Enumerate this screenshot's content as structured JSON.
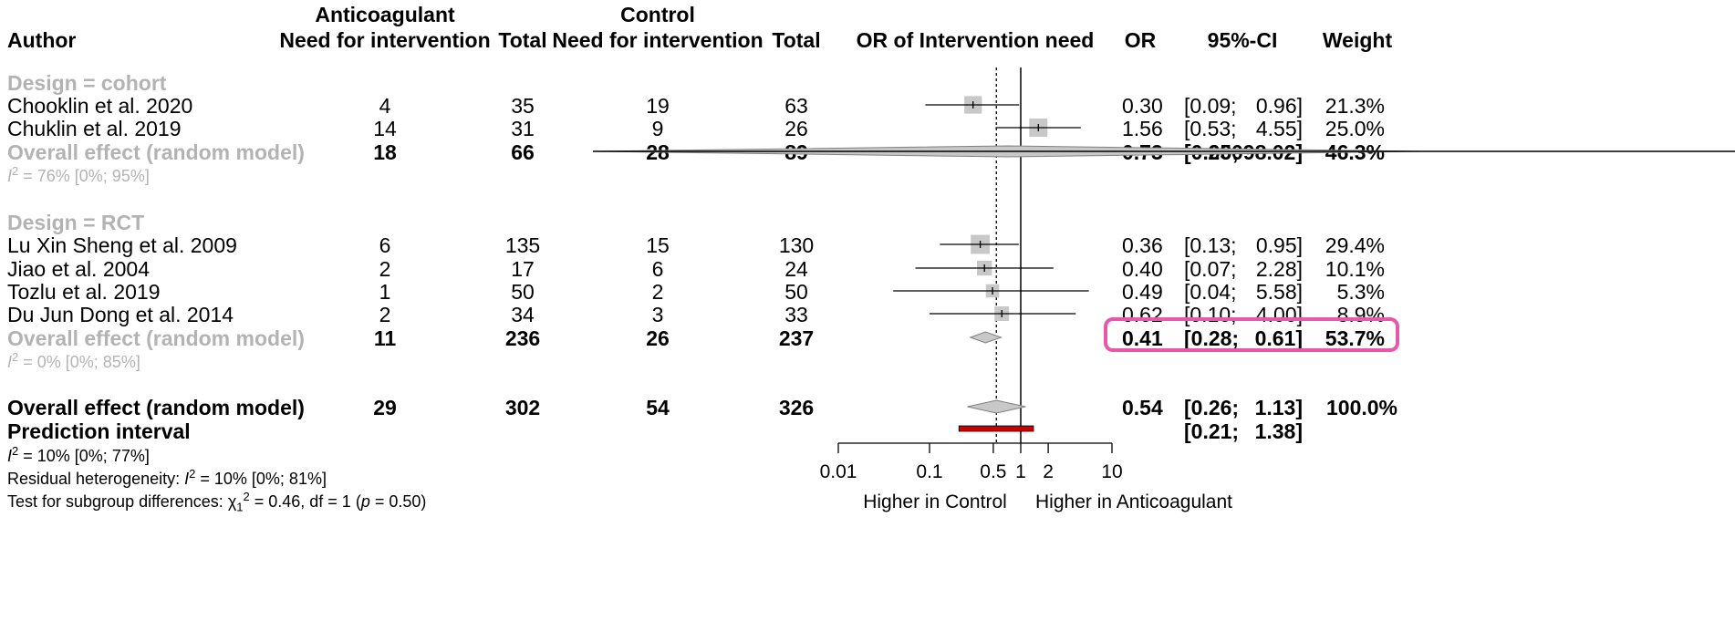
{
  "header": {
    "author": "Author",
    "anticoagulant": "Anticoagulant",
    "control": "Control",
    "need_anti": "Need for intervention",
    "need_ctrl": "Need for intervention",
    "total_anti": "Total",
    "total_ctrl": "Total",
    "plot_title": "OR of Intervention need",
    "or": "OR",
    "ci": "95%-CI",
    "weight": "Weight"
  },
  "colors": {
    "gray_text": "#b3b3b3",
    "box": "#c8c8c8",
    "prediction": "#cc0000",
    "highlight": "#e858a8"
  },
  "chart_data": {
    "type": "forest",
    "title": "OR of Intervention need",
    "xlabel_left": "Higher in Control",
    "xlabel_right": "Higher in Anticoagulant",
    "xscale": "log",
    "xlim": [
      0.01,
      10
    ],
    "ticks": [
      "0.01",
      "0.1",
      "0.5",
      "1",
      "2",
      "10"
    ],
    "tick_values": [
      0.01,
      0.1,
      0.5,
      1,
      2,
      10
    ],
    "null_line": 1,
    "pooled_line": 0.54,
    "subgroups": [
      {
        "label": "Design = cohort",
        "studies": [
          {
            "author": "Chooklin et al. 2020",
            "e_anti": "4",
            "n_anti": "35",
            "e_ctrl": "19",
            "n_ctrl": "63",
            "or": 0.3,
            "lo": 0.09,
            "hi": 0.96,
            "or_txt": "0.30",
            "ci_lo_txt": "[0.09;",
            "ci_hi_txt": "0.96]",
            "weight_txt": "21.3%",
            "weight": 21.3
          },
          {
            "author": "Chuklin et al.  2019",
            "e_anti": "14",
            "n_anti": "31",
            "e_ctrl": "9",
            "n_ctrl": "26",
            "or": 1.56,
            "lo": 0.53,
            "hi": 4.55,
            "or_txt": "1.56",
            "ci_lo_txt": "[0.53;",
            "ci_hi_txt": "4.55]",
            "weight_txt": "25.0%",
            "weight": 25.0
          }
        ],
        "overall": {
          "label": "Overall effect (random model)",
          "e_anti": "18",
          "n_anti": "66",
          "e_ctrl": "28",
          "n_ctrl": "89",
          "or": 0.73,
          "lo": 0.0,
          "hi": 25098.02,
          "or_txt": "0.73",
          "ci_lo_txt": "[0.00;",
          "ci_hi_txt": "25098.02]",
          "weight_txt": "46.3%"
        },
        "het_suffix": " = 76% [0%; 95%]"
      },
      {
        "label": "Design = RCT",
        "studies": [
          {
            "author": "Lu Xin Sheng et al. 2009",
            "e_anti": "6",
            "n_anti": "135",
            "e_ctrl": "15",
            "n_ctrl": "130",
            "or": 0.36,
            "lo": 0.13,
            "hi": 0.95,
            "or_txt": "0.36",
            "ci_lo_txt": "[0.13;",
            "ci_hi_txt": "0.95]",
            "weight_txt": "29.4%",
            "weight": 29.4
          },
          {
            "author": "Jiao et al. 2004",
            "e_anti": "2",
            "n_anti": "17",
            "e_ctrl": "6",
            "n_ctrl": "24",
            "or": 0.4,
            "lo": 0.07,
            "hi": 2.28,
            "or_txt": "0.40",
            "ci_lo_txt": "[0.07;",
            "ci_hi_txt": "2.28]",
            "weight_txt": "10.1%",
            "weight": 10.1
          },
          {
            "author": "Tozlu  et al. 2019",
            "e_anti": "1",
            "n_anti": "50",
            "e_ctrl": "2",
            "n_ctrl": "50",
            "or": 0.49,
            "lo": 0.04,
            "hi": 5.58,
            "or_txt": "0.49",
            "ci_lo_txt": "[0.04;",
            "ci_hi_txt": "5.58]",
            "weight_txt": "5.3%",
            "weight": 5.3
          },
          {
            "author": "Du Jun Dong et al. 2014",
            "e_anti": "2",
            "n_anti": "34",
            "e_ctrl": "3",
            "n_ctrl": "33",
            "or": 0.62,
            "lo": 0.1,
            "hi": 4.0,
            "or_txt": "0.62",
            "ci_lo_txt": "[0.10;",
            "ci_hi_txt": "4.00]",
            "weight_txt": "8.9%",
            "weight": 8.9
          }
        ],
        "overall": {
          "label": "Overall effect (random model)",
          "e_anti": "11",
          "n_anti": "236",
          "e_ctrl": "26",
          "n_ctrl": "237",
          "or": 0.41,
          "lo": 0.28,
          "hi": 0.61,
          "or_txt": "0.41",
          "ci_lo_txt": "[0.28;",
          "ci_hi_txt": "0.61]",
          "weight_txt": "53.7%"
        },
        "het_suffix": " = 0% [0%; 85%]"
      }
    ],
    "overall": {
      "label": "Overall effect (random model)",
      "e_anti": "29",
      "n_anti": "302",
      "e_ctrl": "54",
      "n_ctrl": "326",
      "or": 0.54,
      "lo": 0.26,
      "hi": 1.13,
      "or_txt": "0.54",
      "ci_lo_txt": "[0.26;",
      "ci_hi_txt": "1.13]",
      "weight_txt": "100.0%"
    },
    "prediction": {
      "label": "Prediction interval",
      "lo": 0.21,
      "hi": 1.38,
      "ci_lo_txt": "[0.21;",
      "ci_hi_txt": "1.38]"
    },
    "footer": {
      "het_suffix": " = 10% [0%; 77%]",
      "residual_prefix": "Residual heterogeneity: ",
      "residual_suffix": " = 10% [0%; 81%]",
      "test_prefix": "Test for subgroup differences: ",
      "test_suffix": " = 0.46, df = 1 (",
      "test_p": " = 0.50)"
    }
  }
}
